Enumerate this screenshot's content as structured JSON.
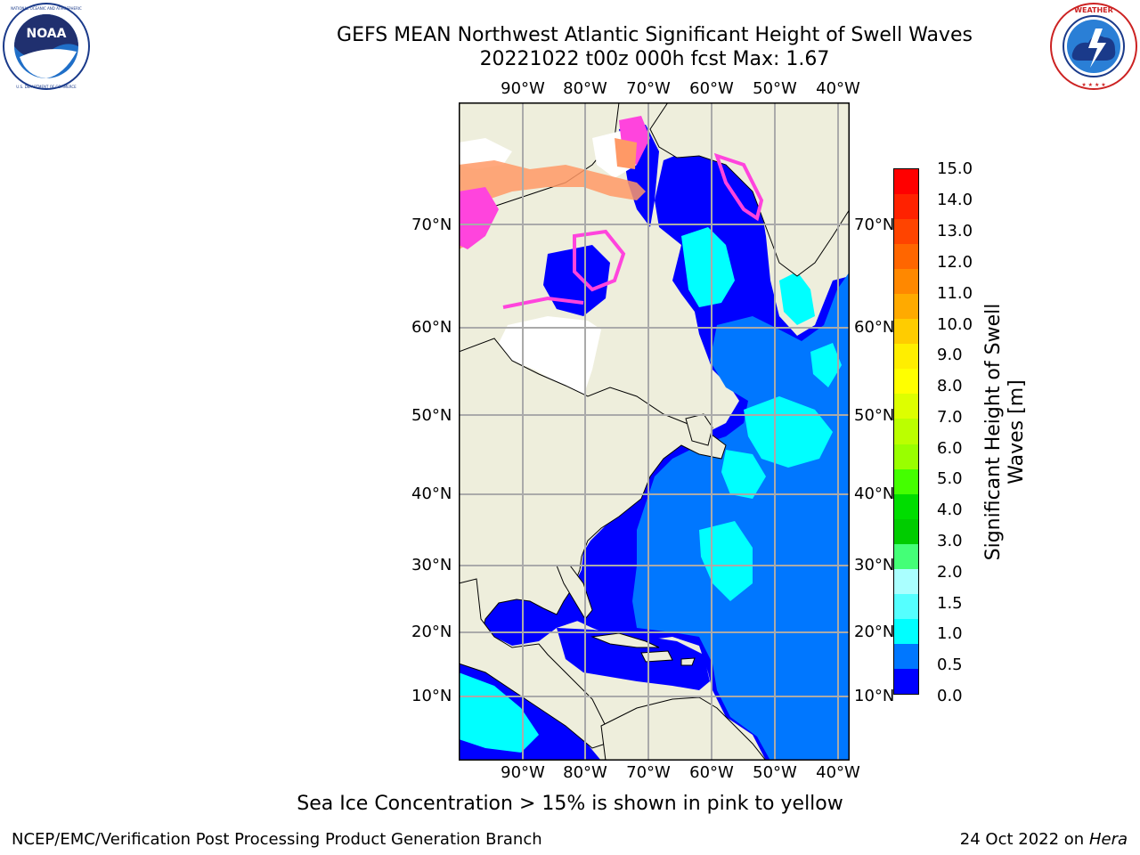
{
  "title": {
    "line1": "GEFS MEAN Northwest Atlantic Significant Height of Swell Waves",
    "line2": "20221022 t00z 000h fcst   Max: 1.67"
  },
  "logos": {
    "left": {
      "name": "NOAA",
      "text": "NOAA",
      "ring_text": "NATIONAL OCEANIC AND ATMOSPHERIC ADMINISTRATION · U.S. DEPARTMENT OF COMMERCE"
    },
    "right": {
      "name": "National Weather Service",
      "ring_text": "NATIONAL WEATHER SERVICE"
    }
  },
  "map": {
    "lon_labels": [
      "90°W",
      "80°W",
      "70°W",
      "60°W",
      "50°W",
      "40°W"
    ],
    "lat_labels": [
      "70°N",
      "60°N",
      "50°N",
      "40°N",
      "30°N",
      "20°N",
      "10°N"
    ],
    "colors": {
      "land": "#eeeedc",
      "ocean_low": "#0000ff",
      "ocean_mid": "#0077ff",
      "ocean_high": "#00ffff",
      "ice_pink": "#ff44dd",
      "ice_orange": "#ff9966",
      "grid": "#aaaaaa"
    }
  },
  "colorbar": {
    "label": "Significant Height of Swell Waves [m]",
    "ticks": [
      "15.0",
      "14.0",
      "13.0",
      "12.0",
      "11.0",
      "10.0",
      "9.0",
      "8.0",
      "7.0",
      "6.0",
      "5.0",
      "4.0",
      "3.0",
      "2.0",
      "1.5",
      "1.0",
      "0.5",
      "0.0"
    ],
    "colors_top_to_bottom": [
      "#ff0000",
      "#ff2200",
      "#ff4400",
      "#ff6600",
      "#ff8800",
      "#ffaa00",
      "#ffcc00",
      "#ffee00",
      "#ffff00",
      "#ddff00",
      "#bbff00",
      "#99ff00",
      "#44ff00",
      "#00dd00",
      "#00cc00",
      "#44ff77",
      "#aaffff",
      "#55ffff",
      "#00ffff",
      "#0077ff",
      "#0000ff"
    ]
  },
  "note": "Sea Ice Concentration > 15% is shown in pink to yellow",
  "footer": {
    "left": "NCEP/EMC/Verification Post Processing Product Generation Branch",
    "right_prefix": "24 Oct 2022 on ",
    "right_machine": "Hera"
  }
}
